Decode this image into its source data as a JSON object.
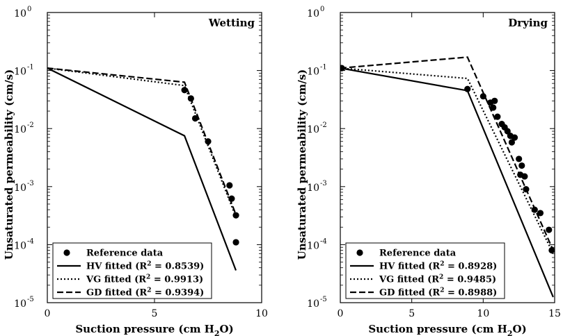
{
  "chart_data": [
    {
      "type": "line",
      "title": "Wetting",
      "xlabel": "Suction pressure (cm H",
      "xlabel_sub": "2",
      "xlabel_end": "O)",
      "ylabel": "Unsaturated permeability (cm/s)",
      "xlim": [
        0,
        10
      ],
      "ylim": [
        1e-05,
        1
      ],
      "yscale": "log",
      "xticks": [
        0,
        5,
        10
      ],
      "xtick_labels": [
        "0",
        "5",
        "10"
      ],
      "yticks": [
        1e-05,
        0.0001,
        0.001,
        0.01,
        0.1,
        1
      ],
      "ytick_bases": [
        "10",
        "10",
        "10",
        "10",
        "10",
        "10"
      ],
      "ytick_exps": [
        "-5",
        "-4",
        "-3",
        "-2",
        "-1",
        "0"
      ],
      "legend_position": "lower-left",
      "scatter": {
        "name": "Reference data",
        "x": [
          6.4,
          6.7,
          6.9,
          7.5,
          8.5,
          8.6,
          8.8,
          8.8
        ],
        "y": [
          0.046,
          0.033,
          0.015,
          0.006,
          0.00105,
          0.00062,
          0.00032,
          0.00011
        ]
      },
      "series": [
        {
          "name": "HV fitted (R",
          "r2": "= 0.8539)",
          "style": "solid",
          "x": [
            0,
            6.4,
            8.8
          ],
          "y": [
            0.11,
            0.0075,
            3.6e-05
          ]
        },
        {
          "name": "VG fitted (R",
          "r2": "= 0.9913)",
          "style": "dotted",
          "x": [
            0,
            6.4,
            8.8
          ],
          "y": [
            0.11,
            0.055,
            0.0003
          ]
        },
        {
          "name": "GD fitted (R",
          "r2": "= 0.9394)",
          "style": "dashed",
          "x": [
            0,
            6.4,
            8.8
          ],
          "y": [
            0.11,
            0.063,
            0.00033
          ]
        }
      ]
    },
    {
      "type": "line",
      "title": "Drying",
      "xlabel": "Suction pressure (cm H",
      "xlabel_sub": "2",
      "xlabel_end": "O)",
      "ylabel": "Unsaturated permeability (cm/s)",
      "xlim": [
        0,
        15
      ],
      "ylim": [
        1e-05,
        1
      ],
      "yscale": "log",
      "xticks": [
        0,
        5,
        10,
        15
      ],
      "xtick_labels": [
        "0",
        "5",
        "10",
        "15"
      ],
      "yticks": [
        1e-05,
        0.0001,
        0.001,
        0.01,
        0.1,
        1
      ],
      "ytick_bases": [
        "10",
        "10",
        "10",
        "10",
        "10",
        "10"
      ],
      "ytick_exps": [
        "-5",
        "-4",
        "-3",
        "-2",
        "-1",
        "0"
      ],
      "legend_position": "lower-left",
      "scatter": {
        "name": "Reference data",
        "x": [
          0.1,
          8.9,
          10.0,
          10.5,
          10.8,
          10.7,
          11.0,
          11.3,
          11.5,
          11.7,
          11.9,
          12.0,
          12.2,
          12.5,
          12.6,
          12.7,
          12.9,
          13.0,
          13.6,
          14.0,
          14.6,
          14.8
        ],
        "y": [
          0.11,
          0.048,
          0.036,
          0.028,
          0.03,
          0.023,
          0.016,
          0.012,
          0.0105,
          0.009,
          0.0075,
          0.0058,
          0.007,
          0.003,
          0.0016,
          0.0023,
          0.0015,
          0.0009,
          0.0004,
          0.00035,
          0.00018,
          8e-05
        ]
      },
      "series": [
        {
          "name": "HV fitted (R",
          "r2": "= 0.8928)",
          "style": "solid",
          "x": [
            0,
            8.9,
            14.9
          ],
          "y": [
            0.11,
            0.045,
            1.25e-05
          ]
        },
        {
          "name": "VG fitted (R",
          "r2": "= 0.9485)",
          "style": "dotted",
          "x": [
            0,
            8.9,
            14.9
          ],
          "y": [
            0.11,
            0.073,
            7e-05
          ]
        },
        {
          "name": "GD fitted (R",
          "r2": "= 0.8988)",
          "style": "dashed",
          "x": [
            0,
            8.9,
            14.9
          ],
          "y": [
            0.11,
            0.17,
            8e-05
          ]
        }
      ]
    }
  ]
}
